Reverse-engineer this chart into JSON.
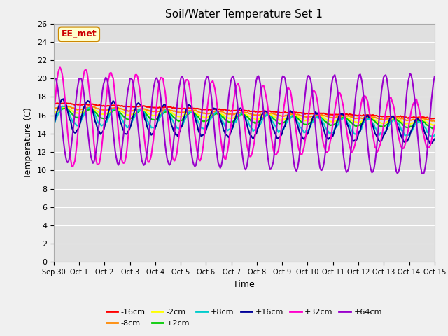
{
  "title": "Soil/Water Temperature Set 1",
  "xlabel": "Time",
  "ylabel": "Temperature (C)",
  "ylim": [
    0,
    26
  ],
  "yticks": [
    0,
    2,
    4,
    6,
    8,
    10,
    12,
    14,
    16,
    18,
    20,
    22,
    24,
    26
  ],
  "series_order": [
    "-16cm",
    "-8cm",
    "-2cm",
    "+2cm",
    "+8cm",
    "+16cm",
    "+32cm",
    "+64cm"
  ],
  "series": {
    "-16cm": {
      "color": "#ff0000",
      "lw": 1.5,
      "base_s": 17.3,
      "base_e": 15.7,
      "amp_s": 0.05,
      "amp_e": 0.05,
      "phase": 0.0
    },
    "-8cm": {
      "color": "#ff8800",
      "lw": 1.5,
      "base_s": 16.9,
      "base_e": 15.5,
      "amp_s": 0.15,
      "amp_e": 0.12,
      "phase": 0.02
    },
    "-2cm": {
      "color": "#ffff00",
      "lw": 1.5,
      "base_s": 16.6,
      "base_e": 15.2,
      "amp_s": 0.3,
      "amp_e": 0.25,
      "phase": 0.04
    },
    "+2cm": {
      "color": "#00cc00",
      "lw": 1.5,
      "base_s": 16.3,
      "base_e": 15.0,
      "amp_s": 0.5,
      "amp_e": 0.4,
      "phase": 0.06
    },
    "+8cm": {
      "color": "#00cccc",
      "lw": 1.5,
      "base_s": 16.0,
      "base_e": 14.5,
      "amp_s": 1.0,
      "amp_e": 0.8,
      "phase": 0.09
    },
    "+16cm": {
      "color": "#000099",
      "lw": 1.5,
      "base_s": 16.0,
      "base_e": 14.3,
      "amp_s": 1.8,
      "amp_e": 1.3,
      "phase": 0.15
    },
    "+32cm": {
      "color": "#ff00cc",
      "lw": 1.5,
      "base_s": 15.8,
      "base_e": 15.0,
      "amp_s": 5.5,
      "amp_e": 2.5,
      "phase": 0.25
    },
    "+64cm": {
      "color": "#9900cc",
      "lw": 1.5,
      "base_s": 15.5,
      "base_e": 15.0,
      "amp_s": 4.5,
      "amp_e": 5.5,
      "phase": 0.45
    }
  },
  "annotation_text": "EE_met",
  "annotation_color": "#cc0000",
  "annotation_bg": "#ffffcc",
  "fig_bg": "#f0f0f0",
  "plot_bg": "#e0e0e0",
  "n_points": 360
}
